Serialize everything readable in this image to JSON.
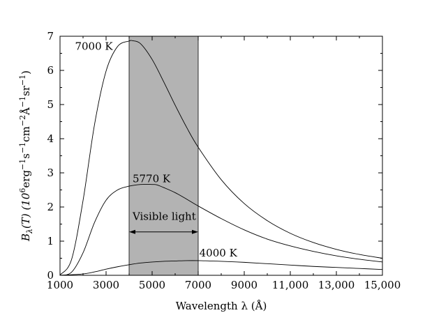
{
  "chart_data": {
    "type": "line",
    "title": "",
    "xlabel": "Wavelength λ (Å)",
    "ylabel": {
      "main": "B",
      "sub": "λ",
      "rest": "(T) (10",
      "sup_exp": "6",
      "units": "erg",
      "u1": "s",
      "u2": "cm",
      "u3": "Å",
      "u4": "sr",
      "e1": "−1",
      "e2": "−2",
      "e3": "−1",
      "e4": "−1",
      "close": ")"
    },
    "xlim": [
      1000,
      15000
    ],
    "ylim": [
      0,
      7
    ],
    "x_ticks": [
      1000,
      3000,
      5000,
      7000,
      9000,
      11000,
      13000,
      15000
    ],
    "x_tick_labels": [
      "1000",
      "3000",
      "5000",
      "7000",
      "9000",
      "11,000",
      "13,000",
      "15,000"
    ],
    "y_ticks": [
      0,
      1,
      2,
      3,
      4,
      5,
      6,
      7
    ],
    "y_tick_labels": [
      "0",
      "1",
      "2",
      "3",
      "4",
      "5",
      "6",
      "7"
    ],
    "grid": false,
    "shaded_region": {
      "x_start": 4000,
      "x_end": 7000,
      "color": "#b3b3b3"
    },
    "series": [
      {
        "name": "7000 K",
        "color": "#000000",
        "x": [
          1000,
          1500,
          2000,
          2500,
          3000,
          3500,
          4000,
          4140,
          4500,
          5000,
          5500,
          6000,
          6500,
          7000,
          8000,
          9000,
          10000,
          11000,
          12000,
          13000,
          14000,
          15000
        ],
        "y": [
          0.01,
          0.46,
          2.19,
          4.42,
          5.98,
          6.7,
          6.86,
          6.87,
          6.78,
          6.32,
          5.67,
          4.98,
          4.33,
          3.75,
          2.8,
          2.1,
          1.6,
          1.23,
          0.96,
          0.76,
          0.61,
          0.5
        ]
      },
      {
        "name": "5770 K",
        "color": "#000000",
        "x": [
          1000,
          1500,
          2000,
          2500,
          3000,
          3500,
          4000,
          4500,
          5000,
          5200,
          5500,
          6000,
          6500,
          7000,
          8000,
          9000,
          10000,
          11000,
          12000,
          13000,
          14000,
          15000
        ],
        "y": [
          0.0,
          0.09,
          0.66,
          1.55,
          2.2,
          2.5,
          2.61,
          2.66,
          2.66,
          2.65,
          2.57,
          2.42,
          2.23,
          2.03,
          1.66,
          1.33,
          1.06,
          0.86,
          0.7,
          0.57,
          0.47,
          0.39
        ]
      },
      {
        "name": "4000 K",
        "color": "#000000",
        "x": [
          1000,
          2000,
          2500,
          3000,
          3500,
          4000,
          4500,
          5000,
          5500,
          6000,
          6500,
          7000,
          7500,
          8000,
          9000,
          10000,
          11000,
          12000,
          13000,
          14000,
          15000
        ],
        "y": [
          0.0,
          0.04,
          0.1,
          0.18,
          0.25,
          0.31,
          0.36,
          0.39,
          0.41,
          0.42,
          0.43,
          0.43,
          0.42,
          0.41,
          0.38,
          0.34,
          0.3,
          0.26,
          0.23,
          0.2,
          0.17
        ]
      }
    ],
    "annotations": {
      "label_7000": "7000 K",
      "label_5770": "5770 K",
      "label_4000": "4000 K",
      "visible_light": "Visible light"
    }
  }
}
